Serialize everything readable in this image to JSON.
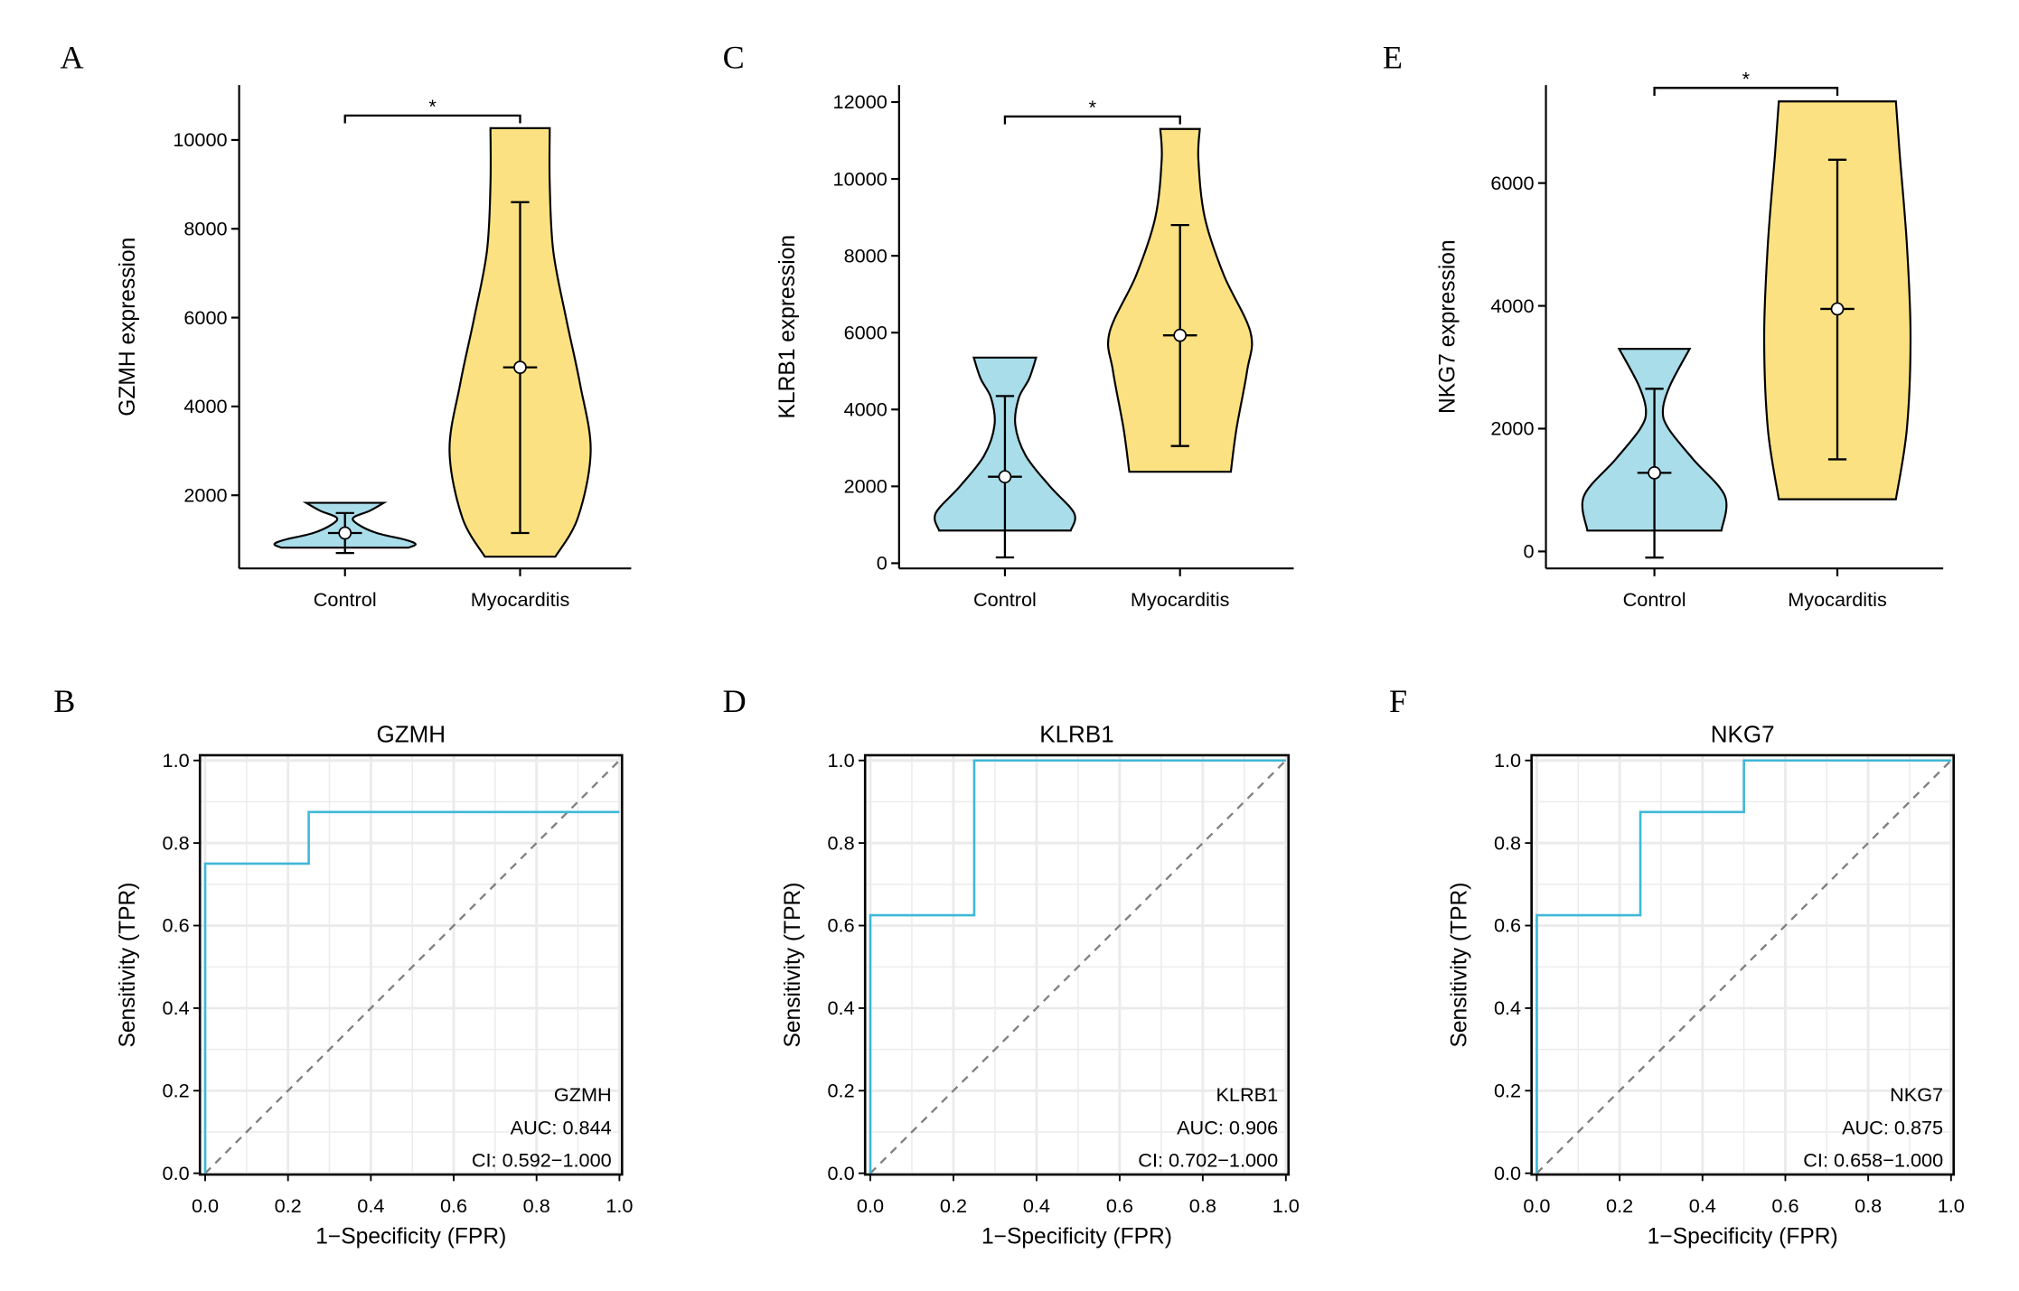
{
  "colors": {
    "control": "#a8dde9",
    "myocarditis": "#fbe181",
    "roc_line": "#3fb8d8",
    "diagonal": "#808080",
    "grid": "#ebebeb"
  },
  "chart_data": [
    {
      "type": "violin",
      "panel": "A",
      "ylabel": "GZMH expression",
      "categories": [
        "Control",
        "Myocarditis"
      ],
      "yticks": [
        2000,
        4000,
        6000,
        8000,
        10000
      ],
      "ylim": [
        0,
        11200
      ],
      "significance": "*",
      "groups": [
        {
          "name": "Control",
          "min": 820,
          "max": 1830,
          "mean": 1150,
          "err_low": 700,
          "err_high": 1600,
          "density": [
            [
              820,
              0.9
            ],
            [
              900,
              1.0
            ],
            [
              1000,
              0.85
            ],
            [
              1150,
              0.45
            ],
            [
              1350,
              0.18
            ],
            [
              1500,
              0.12
            ],
            [
              1650,
              0.35
            ],
            [
              1830,
              0.55
            ]
          ]
        },
        {
          "name": "Myocarditis",
          "min": 618,
          "max": 10265,
          "mean": 4880,
          "err_low": 1150,
          "err_high": 8600,
          "density": [
            [
              618,
              0.5
            ],
            [
              1500,
              0.82
            ],
            [
              3000,
              1.0
            ],
            [
              4500,
              0.85
            ],
            [
              6000,
              0.65
            ],
            [
              7500,
              0.47
            ],
            [
              9000,
              0.42
            ],
            [
              10265,
              0.42
            ]
          ]
        }
      ],
      "bracket_y": 10550
    },
    {
      "type": "violin",
      "panel": "C",
      "ylabel": "KLRB1 expression",
      "categories": [
        "Control",
        "Myocarditis"
      ],
      "yticks": [
        0,
        2000,
        4000,
        6000,
        8000,
        10000,
        12000
      ],
      "ylim": [
        -150,
        12400
      ],
      "significance": "*",
      "groups": [
        {
          "name": "Control",
          "min": 850,
          "max": 5350,
          "mean": 2250,
          "err_low": 150,
          "err_high": 4350,
          "density": [
            [
              850,
              0.95
            ],
            [
              1300,
              1.0
            ],
            [
              2000,
              0.65
            ],
            [
              2800,
              0.3
            ],
            [
              3600,
              0.15
            ],
            [
              4300,
              0.2
            ],
            [
              4800,
              0.35
            ],
            [
              5350,
              0.45
            ]
          ]
        },
        {
          "name": "Myocarditis",
          "min": 2380,
          "max": 11300,
          "mean": 5930,
          "err_low": 3050,
          "err_high": 8800,
          "density": [
            [
              2380,
              0.72
            ],
            [
              3500,
              0.8
            ],
            [
              5000,
              0.95
            ],
            [
              6000,
              1.0
            ],
            [
              7500,
              0.62
            ],
            [
              9000,
              0.35
            ],
            [
              10500,
              0.26
            ],
            [
              11300,
              0.28
            ]
          ]
        }
      ],
      "bracket_y": 11625
    },
    {
      "type": "violin",
      "panel": "E",
      "ylabel": "NKG7 expression",
      "categories": [
        "Control",
        "Myocarditis"
      ],
      "yticks": [
        0,
        2000,
        4000,
        6000
      ],
      "ylim": [
        -300,
        7600
      ],
      "significance": "*",
      "groups": [
        {
          "name": "Control",
          "min": 340,
          "max": 3300,
          "mean": 1280,
          "err_low": -100,
          "err_high": 2650,
          "density": [
            [
              340,
              0.95
            ],
            [
              900,
              1.0
            ],
            [
              1500,
              0.55
            ],
            [
              2000,
              0.2
            ],
            [
              2300,
              0.12
            ],
            [
              2700,
              0.22
            ],
            [
              3300,
              0.5
            ]
          ]
        },
        {
          "name": "Myocarditis",
          "min": 850,
          "max": 7330,
          "mean": 3950,
          "err_low": 1500,
          "err_high": 6380,
          "density": [
            [
              850,
              0.8
            ],
            [
              2000,
              0.95
            ],
            [
              3500,
              1.0
            ],
            [
              5000,
              0.95
            ],
            [
              6500,
              0.85
            ],
            [
              7330,
              0.8
            ]
          ]
        }
      ],
      "bracket_y": 7550
    },
    {
      "type": "line",
      "panel": "B",
      "title": "GZMH",
      "xlabel": "1−Specificity (FPR)",
      "ylabel": "Sensitivity (TPR)",
      "xlim": [
        0,
        1
      ],
      "ylim": [
        0,
        1
      ],
      "ticks": [
        "0.0",
        "0.2",
        "0.4",
        "0.6",
        "0.8",
        "1.0"
      ],
      "grid": true,
      "roc": [
        [
          0,
          0
        ],
        [
          0,
          0.75
        ],
        [
          0.25,
          0.75
        ],
        [
          0.25,
          0.875
        ],
        [
          1,
          0.875
        ]
      ],
      "annotation": [
        "GZMH",
        "AUC: 0.844",
        "CI: 0.592−1.000"
      ]
    },
    {
      "type": "line",
      "panel": "D",
      "title": "KLRB1",
      "xlabel": "1−Specificity (FPR)",
      "ylabel": "Sensitivity (TPR)",
      "xlim": [
        0,
        1
      ],
      "ylim": [
        0,
        1
      ],
      "ticks": [
        "0.0",
        "0.2",
        "0.4",
        "0.6",
        "0.8",
        "1.0"
      ],
      "grid": true,
      "roc": [
        [
          0,
          0
        ],
        [
          0,
          0.625
        ],
        [
          0.25,
          0.625
        ],
        [
          0.25,
          1
        ],
        [
          1,
          1
        ]
      ],
      "annotation": [
        "KLRB1",
        "AUC: 0.906",
        "CI: 0.702−1.000"
      ]
    },
    {
      "type": "line",
      "panel": "F",
      "title": "NKG7",
      "xlabel": "1−Specificity (FPR)",
      "ylabel": "Sensitivity (TPR)",
      "xlim": [
        0,
        1
      ],
      "ylim": [
        0,
        1
      ],
      "ticks": [
        "0.0",
        "0.2",
        "0.4",
        "0.6",
        "0.8",
        "1.0"
      ],
      "grid": true,
      "roc": [
        [
          0,
          0
        ],
        [
          0,
          0.625
        ],
        [
          0.25,
          0.625
        ],
        [
          0.25,
          0.875
        ],
        [
          0.5,
          0.875
        ],
        [
          0.5,
          1
        ],
        [
          1,
          1
        ]
      ],
      "annotation": [
        "NKG7",
        "AUC: 0.875",
        "CI: 0.658−1.000"
      ]
    }
  ]
}
